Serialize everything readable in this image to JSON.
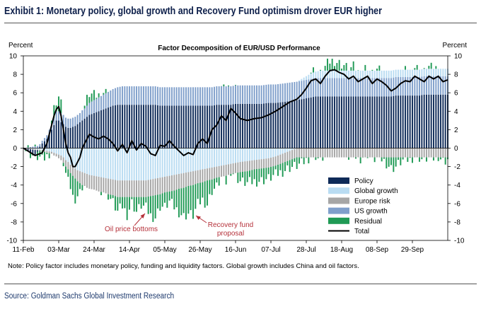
{
  "exhibit_title": "Exhibit 1: Monetary policy, global growth and Recovery Fund optimism drover EUR higher",
  "note": "Note: Policy factor includes monetary policy, funding and liquidity factors. Global growth includes China and oil factors.",
  "source": "Source: Goldman Sachs Global Investment Research",
  "colors": {
    "policy": "#0e2a58",
    "global_growth": "#b9dcf2",
    "europe_risk": "#a6a6a6",
    "us_growth": "#7f9fcb",
    "residual": "#1f9a55",
    "total": "#000000",
    "annotation": "#b5313a"
  },
  "chart_data": {
    "type": "bar",
    "subtype": "stacked-bar-with-line",
    "title": "Factor Decomposition of EUR/USD Performance",
    "ylabel_left": "Percent",
    "ylabel_right": "Percent",
    "ylim": [
      -10,
      10
    ],
    "yticks": [
      10,
      8,
      6,
      4,
      2,
      0,
      -2,
      -4,
      -6,
      -8,
      -10
    ],
    "x_tick_labels": [
      "11-Feb",
      "03-Mar",
      "24-Mar",
      "14-Apr",
      "05-May",
      "26-May",
      "16-Jun",
      "07-Jul",
      "28-Jul",
      "18-Aug",
      "08-Sep",
      "29-Sep"
    ],
    "x_tick_day_index": [
      0,
      15,
      30,
      45,
      60,
      75,
      90,
      105,
      120,
      135,
      150,
      165
    ],
    "legend_position": "right-middle",
    "legend": [
      "Policy",
      "Global growth",
      "Europe risk",
      "US growth",
      "Residual",
      "Total"
    ],
    "annotations": [
      {
        "text": "Oil price bottoms",
        "near_day_index": 50,
        "near_value": -7.0
      },
      {
        "text": "Recovery fund\nproposal",
        "near_day_index": 71,
        "near_value": -7.8
      }
    ],
    "series_keyframes": {
      "day_index": [
        0,
        5,
        8,
        10,
        12,
        13,
        14,
        15,
        16,
        17,
        18,
        19,
        20,
        21,
        22,
        23,
        24,
        25,
        26,
        27,
        28,
        30,
        32,
        34,
        36,
        38,
        40,
        42,
        44,
        46,
        48,
        50,
        52,
        54,
        56,
        58,
        60,
        62,
        64,
        66,
        68,
        70,
        72,
        74,
        76,
        78,
        80,
        82,
        84,
        86,
        88,
        90,
        92,
        95,
        98,
        101,
        104,
        107,
        110,
        113,
        116,
        118,
        120,
        122,
        124,
        126,
        128,
        130,
        132,
        134,
        136,
        138,
        140,
        142,
        144,
        146,
        148,
        150,
        152,
        154,
        156,
        158,
        160,
        162,
        164,
        166,
        168,
        170,
        172,
        174,
        176,
        178,
        180
      ],
      "total": [
        0,
        -0.8,
        -0.5,
        0.5,
        2.5,
        3.5,
        4.2,
        4.5,
        3.5,
        2.0,
        0.5,
        -0.5,
        -1.0,
        -2.0,
        -2.0,
        -1.5,
        -1.0,
        0.0,
        0.5,
        1.0,
        1.5,
        1.2,
        1.0,
        1.3,
        1.0,
        0.5,
        -0.3,
        0.4,
        -0.5,
        0.8,
        -0.2,
        0.5,
        0.2,
        -0.6,
        -0.8,
        0.3,
        0.2,
        0.8,
        0.2,
        -0.3,
        -0.8,
        -0.5,
        -0.7,
        0.5,
        1.0,
        0.5,
        2.0,
        2.5,
        3.5,
        3.0,
        4.3,
        3.8,
        3.2,
        3.0,
        3.2,
        3.3,
        3.6,
        4.0,
        4.5,
        5.0,
        5.3,
        5.8,
        6.5,
        7.3,
        7.5,
        7.0,
        7.8,
        8.4,
        8.5,
        8.2,
        8.0,
        7.5,
        7.8,
        7.2,
        7.5,
        7.8,
        7.0,
        7.5,
        7.2,
        6.8,
        6.2,
        6.5,
        7.0,
        7.3,
        7.2,
        7.8,
        7.5,
        7.2,
        7.8,
        7.5,
        7.8,
        7.2,
        7.4
      ],
      "policy": [
        0,
        -0.5,
        0.5,
        1.0,
        2.0,
        2.5,
        3.0,
        3.0,
        2.8,
        2.6,
        2.3,
        2.2,
        2.2,
        2.3,
        2.4,
        2.6,
        2.8,
        3.0,
        3.2,
        3.4,
        3.6,
        3.8,
        4.0,
        4.2,
        4.4,
        4.6,
        4.7,
        4.7,
        4.7,
        4.7,
        4.7,
        4.7,
        4.7,
        4.7,
        4.7,
        4.6,
        4.6,
        4.6,
        4.6,
        4.6,
        4.6,
        4.6,
        4.6,
        4.6,
        4.6,
        4.6,
        4.6,
        4.7,
        4.7,
        4.7,
        4.7,
        4.8,
        4.8,
        4.8,
        4.8,
        4.8,
        4.9,
        4.9,
        5.0,
        5.1,
        5.2,
        5.3,
        5.4,
        5.5,
        5.6,
        5.6,
        5.6,
        5.6,
        5.6,
        5.6,
        5.6,
        5.6,
        5.6,
        5.6,
        5.6,
        5.6,
        5.6,
        5.6,
        5.6,
        5.6,
        5.6,
        5.7,
        5.7,
        5.7,
        5.7,
        5.7,
        5.7,
        5.8,
        5.8,
        5.8,
        5.8,
        5.8,
        5.8
      ],
      "us_growth": [
        0,
        0.2,
        0.3,
        0.4,
        0.6,
        0.8,
        1.0,
        1.0,
        1.0,
        1.0,
        1.0,
        1.0,
        1.0,
        1.0,
        1.0,
        1.0,
        1.0,
        1.1,
        1.1,
        1.2,
        1.3,
        1.4,
        1.5,
        1.6,
        1.7,
        1.8,
        1.9,
        2.0,
        2.0,
        2.0,
        2.0,
        2.0,
        2.0,
        2.0,
        2.0,
        2.0,
        2.0,
        2.0,
        2.0,
        2.0,
        2.0,
        2.0,
        2.0,
        2.0,
        2.0,
        2.0,
        2.0,
        2.0,
        2.0,
        2.0,
        2.0,
        2.0,
        2.0,
        2.0,
        2.0,
        2.0,
        2.0,
        2.0,
        2.0,
        2.0,
        2.0,
        2.0,
        2.0,
        2.0,
        2.0,
        2.0,
        2.0,
        2.0,
        2.0,
        2.0,
        2.0,
        2.0,
        2.0,
        2.0,
        2.0,
        2.0,
        2.0,
        2.0,
        2.0,
        2.0,
        2.0,
        2.0,
        2.0,
        2.0,
        2.0,
        2.0,
        2.0,
        2.0,
        2.0,
        2.0,
        2.0,
        2.0,
        2.0
      ],
      "global_growth": [
        0,
        -0.1,
        -0.2,
        -0.3,
        -0.4,
        -0.5,
        -0.6,
        -0.7,
        -0.8,
        -1.0,
        -1.3,
        -1.5,
        -1.8,
        -2.0,
        -2.2,
        -2.4,
        -2.5,
        -2.6,
        -2.7,
        -2.8,
        -2.9,
        -3.0,
        -3.1,
        -3.2,
        -3.3,
        -3.4,
        -3.5,
        -3.5,
        -3.5,
        -3.5,
        -3.5,
        -3.5,
        -3.5,
        -3.4,
        -3.3,
        -3.2,
        -3.1,
        -3.0,
        -2.9,
        -2.8,
        -2.7,
        -2.6,
        -2.5,
        -2.4,
        -2.3,
        -2.2,
        -2.1,
        -2.0,
        -1.9,
        -1.8,
        -1.7,
        -1.6,
        -1.5,
        -1.4,
        -1.3,
        -1.2,
        -1.1,
        -0.9,
        -0.6,
        -0.3,
        0.0,
        0.2,
        0.4,
        0.6,
        0.7,
        0.8,
        0.8,
        0.8,
        0.8,
        0.8,
        0.8,
        0.8,
        0.8,
        0.8,
        0.8,
        0.8,
        0.8,
        0.8,
        0.8,
        0.8,
        0.8,
        0.8,
        0.8,
        0.8,
        0.8,
        0.8,
        0.8,
        0.8,
        0.8,
        0.8,
        0.8,
        0.8,
        0.8
      ],
      "europe_risk": [
        0,
        -0.1,
        -0.1,
        -0.2,
        -0.2,
        -0.3,
        -0.3,
        -0.4,
        -0.5,
        -0.6,
        -0.7,
        -0.8,
        -0.9,
        -1.0,
        -1.1,
        -1.2,
        -1.3,
        -1.4,
        -1.4,
        -1.5,
        -1.5,
        -1.5,
        -1.6,
        -1.6,
        -1.7,
        -1.7,
        -1.8,
        -1.8,
        -1.8,
        -1.8,
        -1.8,
        -1.8,
        -1.8,
        -1.8,
        -1.8,
        -1.8,
        -1.7,
        -1.7,
        -1.7,
        -1.6,
        -1.6,
        -1.5,
        -1.5,
        -1.4,
        -1.4,
        -1.3,
        -1.3,
        -1.2,
        -1.2,
        -1.2,
        -1.1,
        -1.1,
        -1.1,
        -1.1,
        -1.0,
        -1.0,
        -1.0,
        -1.0,
        -1.0,
        -1.0,
        -1.0,
        -1.0,
        -1.0,
        -1.0,
        -1.0,
        -1.0,
        -1.0,
        -1.0,
        -1.0,
        -1.0,
        -1.0,
        -1.0,
        -1.0,
        -1.0,
        -1.0,
        -1.0,
        -1.0,
        -1.0,
        -1.0,
        -1.0,
        -1.0,
        -1.0,
        -1.0,
        -1.0,
        -1.0,
        -1.0,
        -1.0,
        -1.0,
        -1.0,
        -1.0,
        -1.0,
        -1.0,
        -1.0
      ]
    }
  }
}
